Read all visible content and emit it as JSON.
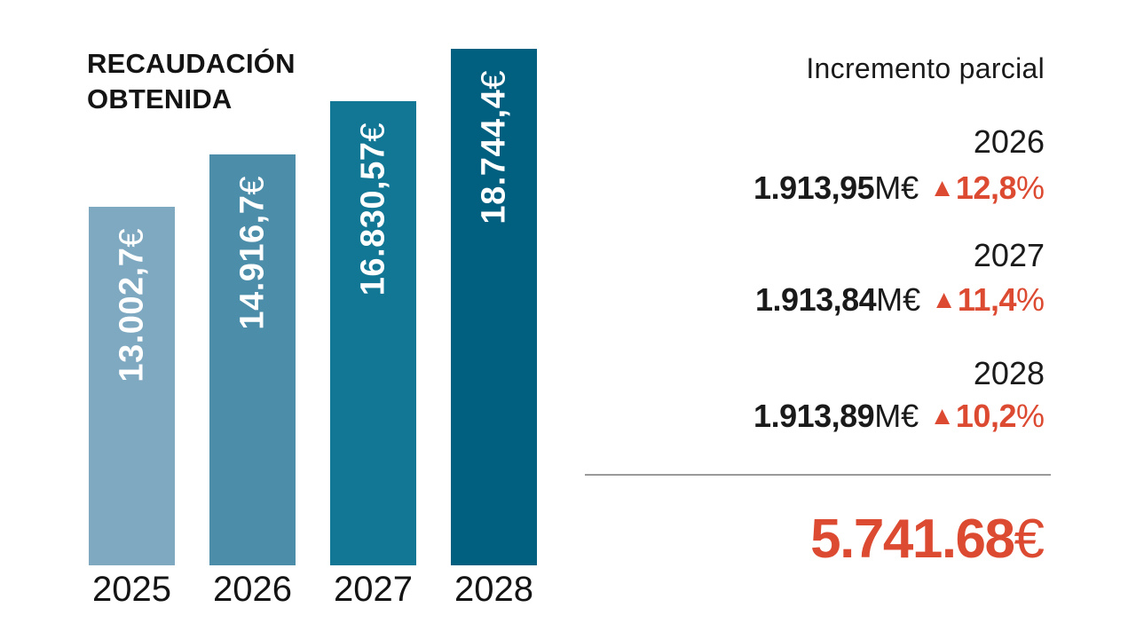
{
  "chart_data": {
    "type": "bar",
    "title": "RECAUDACIÓN OBTENIDA",
    "categories": [
      "2025",
      "2026",
      "2027",
      "2028"
    ],
    "values": [
      13002.7,
      14916.7,
      16830.57,
      18744.4
    ],
    "bar_labels": [
      "13.002,7",
      "14.916,7",
      "16.830,57",
      "18.744,4"
    ],
    "currency_suffix": "€",
    "bar_colors": [
      "#7FA9C1",
      "#4C8DA9",
      "#127794",
      "#01607F"
    ],
    "ylim": [
      0,
      18744.4
    ],
    "grid": false,
    "legend": false,
    "orientation": "vertical",
    "value_label_position": "inside-top-rotated-90ccw"
  },
  "title": {
    "line1": "RECAUDACIÓN",
    "line2": "OBTENIDA"
  },
  "panel": {
    "header": "Incremento parcial",
    "increments": [
      {
        "year": "2026",
        "amount": "1.913,95",
        "unit": "M€",
        "arrow": "▲",
        "pct": "12,8",
        "pct_sign": "%"
      },
      {
        "year": "2027",
        "amount": "1.913,84",
        "unit": "M€",
        "arrow": "▲",
        "pct": "11,4",
        "pct_sign": "%"
      },
      {
        "year": "2028",
        "amount": "1.913,89",
        "unit": "M€",
        "arrow": "▲",
        "pct": "10,2",
        "pct_sign": "%"
      }
    ],
    "total_amount": "5.741.68",
    "total_currency": "€"
  },
  "colors": {
    "accent_red": "#DC4A32",
    "text": "#1A1A1A",
    "divider": "#9A9A9A",
    "bar_label_text": "#FFFFFF"
  }
}
